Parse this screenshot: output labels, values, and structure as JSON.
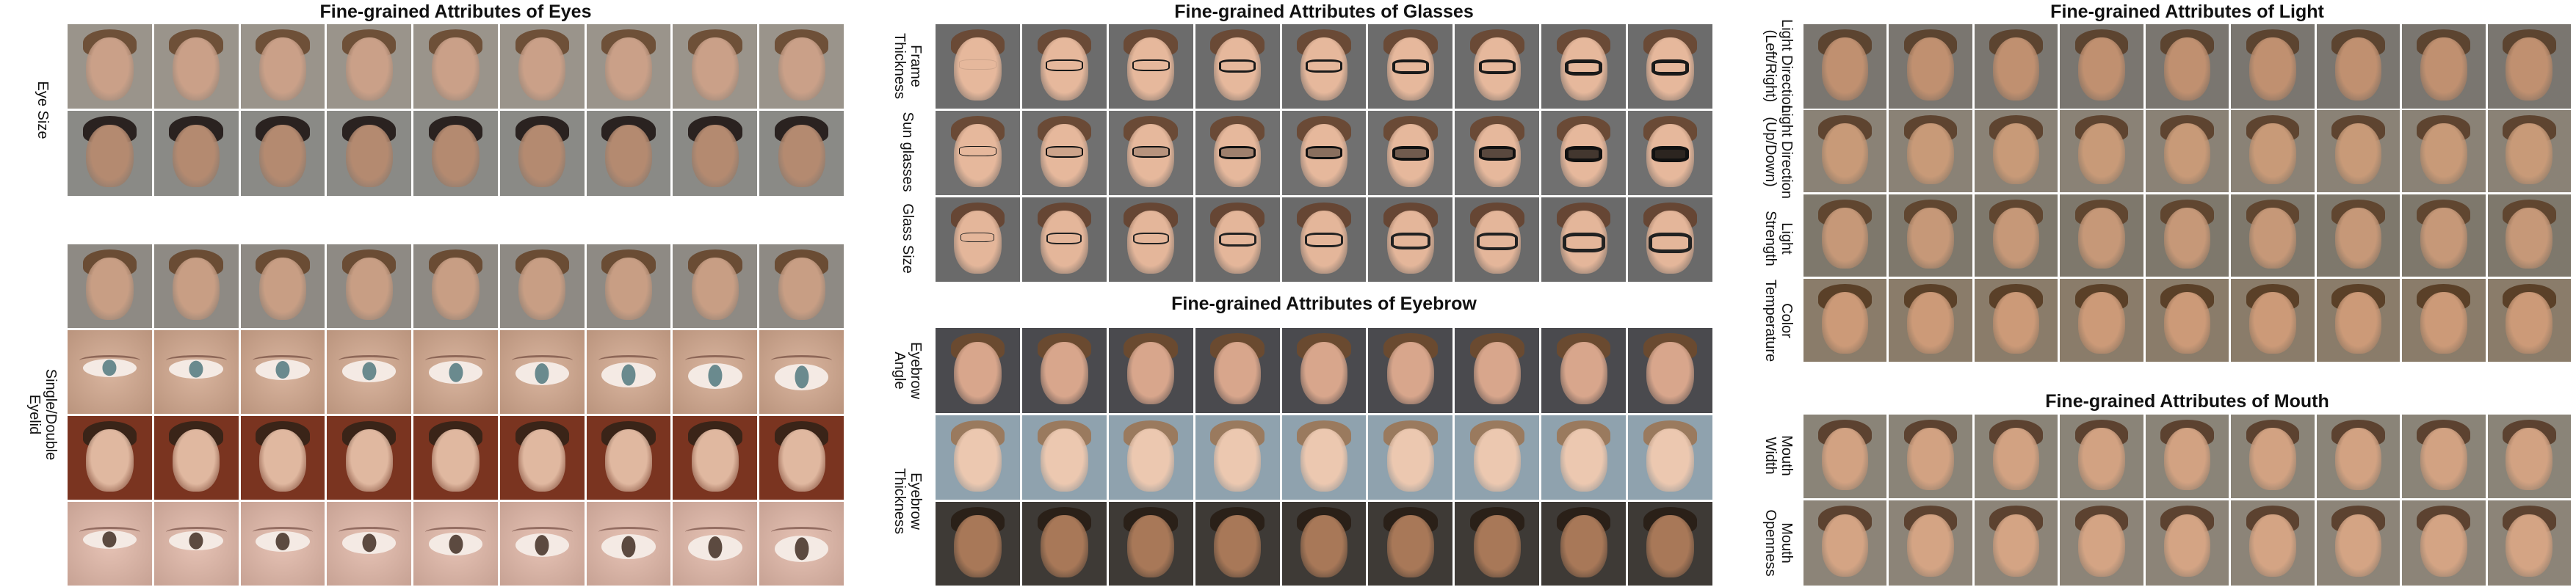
{
  "titles": {
    "eyes": "Fine-grained Attributes of Eyes",
    "glasses": "Fine-grained Attributes of Glasses",
    "eyebrow": "Fine-grained Attributes of Eyebrow",
    "light": "Fine-grained Attributes of Light",
    "mouth": "Fine-grained Attributes of Mouth"
  },
  "labels": {
    "eye_size": "Eye Size",
    "single_double_eyelid": "Single/Double\nEyelid",
    "frame_thickness": "Frame\nThickness",
    "sun_glasses": "Sun glasses",
    "glass_size": "Glass Size",
    "eyebrow_angle": "Eyebrow\nAngle",
    "eyebrow_thickness": "Eyebrow\nThickness",
    "light_direction_lr": "Light Direction\n(Left/Right)",
    "light_direction_ud": "Light Direction\n(Up/Down)",
    "light_strength": "Light\nStrength",
    "color_temperature": "Color\nTemperature",
    "mouth_width": "Mouth\nWidth",
    "mouth_openness": "Mouth\nOpenness"
  },
  "strips": [
    {
      "id": "eyes-size-1",
      "kind": "face",
      "bg": "#9a948b",
      "skin": "#caa088",
      "hair": "#6e5038"
    },
    {
      "id": "eyes-size-2",
      "kind": "face",
      "bg": "#8a8a86",
      "skin": "#b48a70",
      "hair": "#2a2220"
    },
    {
      "id": "eyelid-1",
      "kind": "face",
      "bg": "#8e8a84",
      "skin": "#c89e84",
      "hair": "#6a4c34"
    },
    {
      "id": "eyelid-2",
      "kind": "eye",
      "bg": "#d3a88e",
      "iris": "#6a8a8e"
    },
    {
      "id": "eyelid-3",
      "kind": "face",
      "bg": "#7a3420",
      "skin": "#e0b8a0",
      "hair": "#3a2418"
    },
    {
      "id": "eyelid-4",
      "kind": "eye",
      "bg": "#e2b8a8",
      "iris": "#5c4a40"
    },
    {
      "id": "glasses-frame",
      "kind": "glasses",
      "bg": "#6c6c6c",
      "skin": "#e6b89c",
      "hair": "#6a4a36",
      "frame": "#1a1a1a"
    },
    {
      "id": "glasses-sun",
      "kind": "glasses",
      "bg": "#707070",
      "skin": "#e6b89c",
      "hair": "#6a4a36",
      "frame": "#111111"
    },
    {
      "id": "glasses-size",
      "kind": "glasses",
      "bg": "#6a6a6a",
      "skin": "#e4b69a",
      "hair": "#664634",
      "frame": "#222222"
    },
    {
      "id": "eyebrow-angle",
      "kind": "face",
      "bg": "#4a4a4e",
      "skin": "#d8a68c",
      "hair": "#6a4a30"
    },
    {
      "id": "eyebrow-thick-1",
      "kind": "face",
      "bg": "#8fa2ae",
      "skin": "#ecc8b0",
      "hair": "#9a7a5e"
    },
    {
      "id": "eyebrow-thick-2",
      "kind": "face",
      "bg": "#3e3a36",
      "skin": "#a87858",
      "hair": "#2a2018"
    },
    {
      "id": "light-lr",
      "kind": "face",
      "bg": "#7a7670",
      "skin": "#c09070",
      "hair": "#5c4430"
    },
    {
      "id": "light-ud",
      "kind": "face",
      "bg": "#8a8276",
      "skin": "#c89a78",
      "hair": "#5e4430"
    },
    {
      "id": "light-strength",
      "kind": "face",
      "bg": "#7e786c",
      "skin": "#c69878",
      "hair": "#604630"
    },
    {
      "id": "color-temp",
      "kind": "face",
      "bg": "#8a7c6a",
      "skin": "#cc9a78",
      "hair": "#5a4028"
    },
    {
      "id": "mouth-width",
      "kind": "face",
      "bg": "#8a8478",
      "skin": "#d2a282",
      "hair": "#5c4230"
    },
    {
      "id": "mouth-open",
      "kind": "face",
      "bg": "#8c8478",
      "skin": "#d4a484",
      "hair": "#5c4230"
    }
  ]
}
